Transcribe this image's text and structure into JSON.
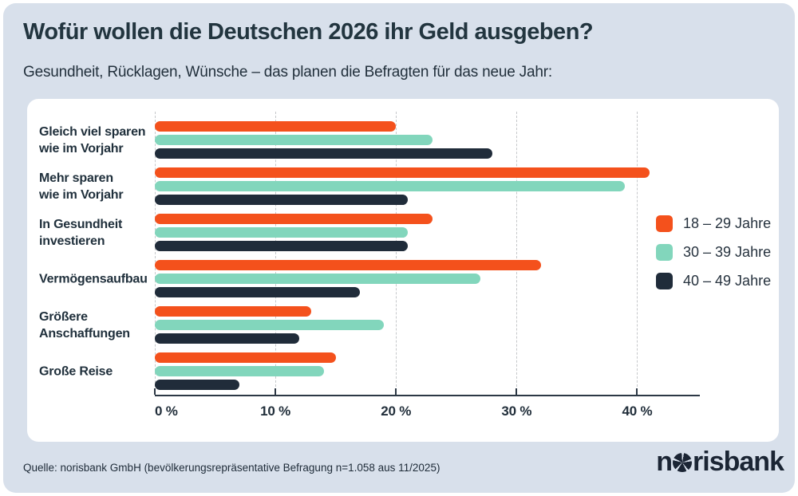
{
  "header": {
    "title": "Wofür wollen die Deutschen 2026 ihr Geld ausgeben?",
    "subtitle": "Gesundheit, Rücklagen, Wünsche – das planen die Befragten für das neue Jahr:"
  },
  "chart_data": {
    "type": "bar",
    "orientation": "horizontal",
    "categories": [
      "Gleich viel sparen\nwie im Vorjahr",
      "Mehr sparen\nwie im Vorjahr",
      "In Gesundheit\ninvestieren",
      "Vermögensaufbau",
      "Größere\nAnschaffungen",
      "Große Reise"
    ],
    "series": [
      {
        "name": "18 – 29 Jahre",
        "color": "#f4511c",
        "values": [
          20,
          41,
          23,
          32,
          13,
          15
        ]
      },
      {
        "name": "30 – 39 Jahre",
        "color": "#82d6bc",
        "values": [
          23,
          39,
          21,
          27,
          19,
          14
        ]
      },
      {
        "name": "40 – 49 Jahre",
        "color": "#202c3a",
        "values": [
          28,
          21,
          21,
          17,
          12,
          7
        ]
      }
    ],
    "x_axis": {
      "ticks": [
        0,
        10,
        20,
        30,
        40
      ],
      "tick_labels": [
        "0 %",
        "10 %",
        "20 %",
        "30 %",
        "40 %"
      ],
      "max": 45.2,
      "unit": "%"
    },
    "grid": "vertical-dashed",
    "legend_position": "right"
  },
  "footer": {
    "source": "Quelle: norisbank GmbH (bevölkerungsrepräsentative Befragung n=1.058 aus 11/2025)",
    "brand_prefix": "n",
    "brand_suffix": "risbank"
  },
  "colors": {
    "card_background": "#d8e0eb",
    "panel_background": "#ffffff",
    "text_dark": "#22353f",
    "axis": "#2c3845",
    "gridline": "#c5c7ca",
    "series_orange": "#f4511c",
    "series_teal": "#82d6bc",
    "series_navy": "#202c3a"
  }
}
